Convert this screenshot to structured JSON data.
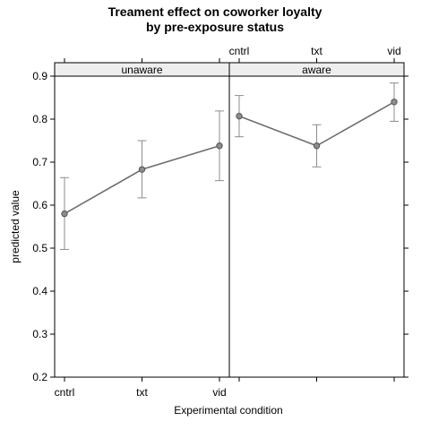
{
  "chart_data": {
    "type": "line",
    "title": [
      "Treament effect on coworker loyalty",
      "by pre-exposure status"
    ],
    "xlabel": "Experimental condition",
    "ylabel": "predicted value",
    "categories": [
      "cntrl",
      "txt",
      "vid"
    ],
    "ylim": [
      0.2,
      0.9
    ],
    "yticks": [
      "0.2",
      "0.3",
      "0.4",
      "0.5",
      "0.6",
      "0.7",
      "0.8",
      "0.9"
    ],
    "panels": [
      {
        "name": "unaware",
        "values": [
          0.58,
          0.683,
          0.738
        ],
        "lower": [
          0.497,
          0.617,
          0.657
        ],
        "upper": [
          0.664,
          0.75,
          0.819
        ]
      },
      {
        "name": "aware",
        "values": [
          0.807,
          0.738,
          0.84
        ],
        "lower": [
          0.759,
          0.689,
          0.795
        ],
        "upper": [
          0.855,
          0.787,
          0.884
        ]
      }
    ],
    "colors": {
      "line": "#6e6e6e",
      "point_fill": "#8c8c8c",
      "error_bar": "#8c8c8c",
      "strip_bg": "#eeeeee"
    },
    "grid": false,
    "legend": "none"
  }
}
